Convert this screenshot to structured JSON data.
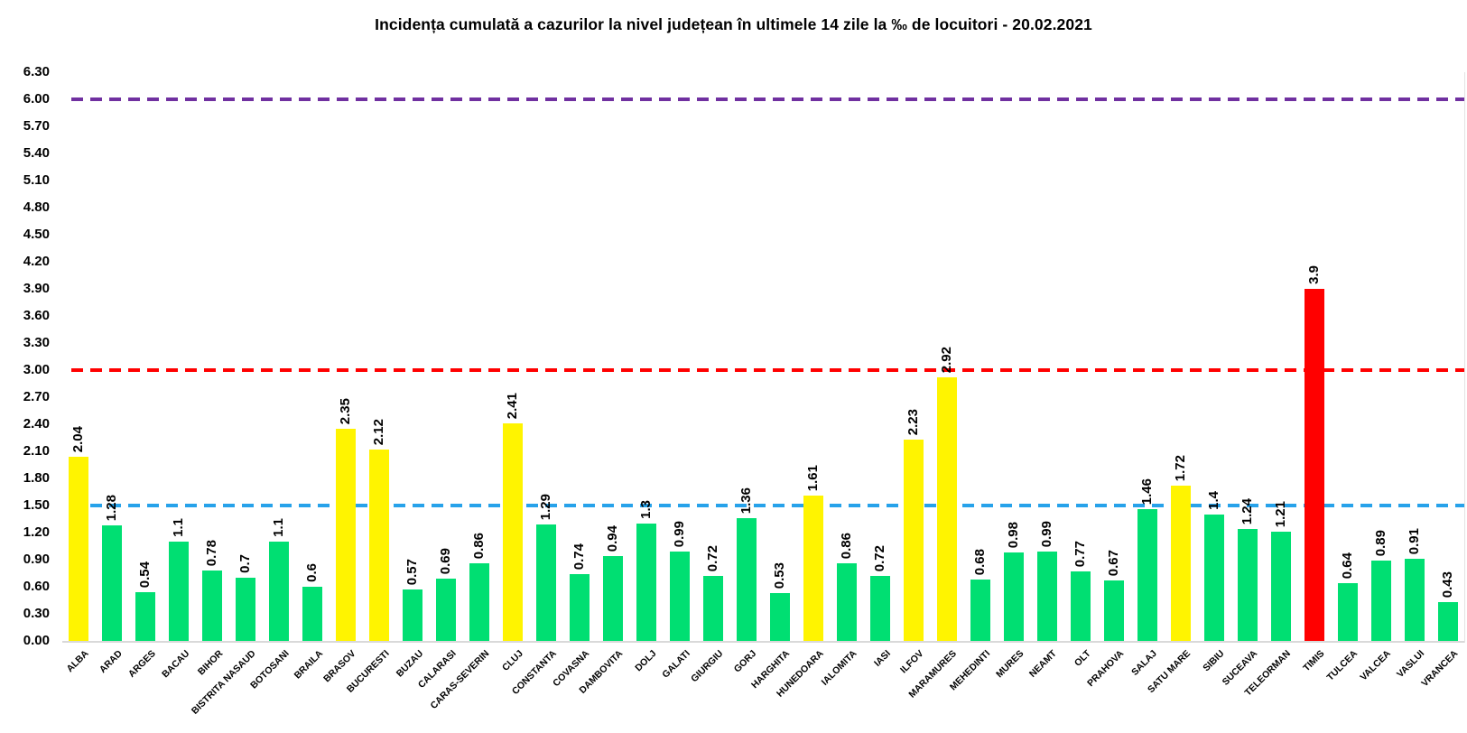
{
  "title": "Incidența cumulată a cazurilor la nivel județean în ultimele 14 zile la ‰ de locuitori - 20.02.2021",
  "colors": {
    "bar_green": "#00DF72",
    "bar_yellow": "#FFF400",
    "bar_red": "#FF0000",
    "threshold_purple": "#7030A0",
    "threshold_red": "#FF0000",
    "threshold_blue": "#27A2EA",
    "axis_line": "#D9D9D9",
    "text": "#000000"
  },
  "chart_data": {
    "type": "bar",
    "title": "Incidența cumulată a cazurilor la nivel județean în ultimele 14 zile la ‰ de locuitori - 20.02.2021",
    "xlabel": "",
    "ylabel": "",
    "ylim": [
      0,
      6.3
    ],
    "ytick_step": 0.3,
    "grid": false,
    "legend": false,
    "value_labels_rotated": true,
    "category_labels_rotated_deg": 45,
    "yticks": [
      "6.30",
      "6.00",
      "5.70",
      "5.40",
      "5.10",
      "4.80",
      "4.50",
      "4.20",
      "3.90",
      "3.60",
      "3.30",
      "3.00",
      "2.70",
      "2.40",
      "2.10",
      "1.80",
      "1.50",
      "1.20",
      "0.90",
      "0.60",
      "0.30",
      "0.00"
    ],
    "thresholds": [
      {
        "value": 6.0,
        "color_key": "threshold_purple",
        "name": "purple-dashed-line-6"
      },
      {
        "value": 3.0,
        "color_key": "threshold_red",
        "name": "red-dashed-line-3"
      },
      {
        "value": 1.5,
        "color_key": "threshold_blue",
        "name": "blue-dashed-line-1-5"
      }
    ],
    "categories": [
      "ALBA",
      "ARAD",
      "ARGES",
      "BACAU",
      "BIHOR",
      "BISTRITA NASAUD",
      "BOTOSANI",
      "BRAILA",
      "BRASOV",
      "BUCURESTI",
      "BUZAU",
      "CALARASI",
      "CARAS-SEVERIN",
      "CLUJ",
      "CONSTANTA",
      "COVASNA",
      "DAMBOVITA",
      "DOLJ",
      "GALATI",
      "GIURGIU",
      "GORJ",
      "HARGHITA",
      "HUNEDOARA",
      "IALOMITA",
      "IASI",
      "ILFOV",
      "MARAMURES",
      "MEHEDINTI",
      "MURES",
      "NEAMT",
      "OLT",
      "PRAHOVA",
      "SALAJ",
      "SATU MARE",
      "SIBIU",
      "SUCEAVA",
      "TELEORMAN",
      "TIMIS",
      "TULCEA",
      "VALCEA",
      "VASLUI",
      "VRANCEA"
    ],
    "values": [
      2.04,
      1.28,
      0.54,
      1.1,
      0.78,
      0.7,
      1.1,
      0.6,
      2.35,
      2.12,
      0.57,
      0.69,
      0.86,
      2.41,
      1.29,
      0.74,
      0.94,
      1.3,
      0.99,
      0.72,
      1.36,
      0.53,
      1.61,
      0.86,
      0.72,
      2.23,
      2.92,
      0.68,
      0.98,
      0.99,
      0.77,
      0.67,
      1.46,
      1.72,
      1.4,
      1.24,
      1.21,
      3.9,
      0.64,
      0.89,
      0.91,
      0.43
    ],
    "value_labels": [
      "2.04",
      "1.28",
      "0.54",
      "1.1",
      "0.78",
      "0.7",
      "1.1",
      "0.6",
      "2.35",
      "2.12",
      "0.57",
      "0.69",
      "0.86",
      "2.41",
      "1.29",
      "0.74",
      "0.94",
      "1.3",
      "0.99",
      "0.72",
      "1.36",
      "0.53",
      "1.61",
      "0.86",
      "0.72",
      "2.23",
      "2.92",
      "0.68",
      "0.98",
      "0.99",
      "0.77",
      "0.67",
      "1.46",
      "1.72",
      "1.4",
      "1.24",
      "1.21",
      "3.9",
      "0.64",
      "0.89",
      "0.91",
      "0.43"
    ],
    "bar_color_keys": [
      "bar_yellow",
      "bar_green",
      "bar_green",
      "bar_green",
      "bar_green",
      "bar_green",
      "bar_green",
      "bar_green",
      "bar_yellow",
      "bar_yellow",
      "bar_green",
      "bar_green",
      "bar_green",
      "bar_yellow",
      "bar_green",
      "bar_green",
      "bar_green",
      "bar_green",
      "bar_green",
      "bar_green",
      "bar_green",
      "bar_green",
      "bar_yellow",
      "bar_green",
      "bar_green",
      "bar_yellow",
      "bar_yellow",
      "bar_green",
      "bar_green",
      "bar_green",
      "bar_green",
      "bar_green",
      "bar_green",
      "bar_yellow",
      "bar_green",
      "bar_green",
      "bar_green",
      "bar_red",
      "bar_green",
      "bar_green",
      "bar_green",
      "bar_green"
    ]
  }
}
